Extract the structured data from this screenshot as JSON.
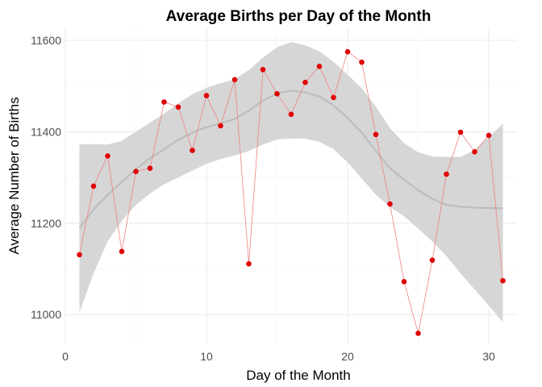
{
  "chart_data": {
    "type": "scatter",
    "title": "Average Births per Day of the Month",
    "xlabel": "Day of the Month",
    "ylabel": "Average Number of Births",
    "xlim": [
      0,
      32
    ],
    "ylim": [
      10935,
      11630
    ],
    "x_ticks": [
      0,
      10,
      20,
      30
    ],
    "y_ticks": [
      11000,
      11200,
      11400,
      11600
    ],
    "grid": true,
    "legend": "none",
    "colors": {
      "points": "#e00000",
      "point_line": "#f08080",
      "smooth_line": "#bdbdbd",
      "ribbon": "#d6d6d6"
    },
    "series": [
      {
        "points": [
          {
            "x": 1,
            "y": 11131
          },
          {
            "x": 2,
            "y": 11281
          },
          {
            "x": 3,
            "y": 11347
          },
          {
            "x": 4,
            "y": 11138
          },
          {
            "x": 5,
            "y": 11313
          },
          {
            "x": 6,
            "y": 11320
          },
          {
            "x": 7,
            "y": 11465
          },
          {
            "x": 8,
            "y": 11454
          },
          {
            "x": 9,
            "y": 11359
          },
          {
            "x": 10,
            "y": 11479
          },
          {
            "x": 11,
            "y": 11413
          },
          {
            "x": 12,
            "y": 11514
          },
          {
            "x": 13,
            "y": 11111
          },
          {
            "x": 14,
            "y": 11536
          },
          {
            "x": 15,
            "y": 11483
          },
          {
            "x": 16,
            "y": 11438
          },
          {
            "x": 17,
            "y": 11508
          },
          {
            "x": 18,
            "y": 11543
          },
          {
            "x": 19,
            "y": 11475
          },
          {
            "x": 20,
            "y": 11575
          },
          {
            "x": 21,
            "y": 11552
          },
          {
            "x": 22,
            "y": 11394
          },
          {
            "x": 23,
            "y": 11242
          },
          {
            "x": 24,
            "y": 11072
          },
          {
            "x": 25,
            "y": 10959
          },
          {
            "x": 26,
            "y": 11119
          },
          {
            "x": 27,
            "y": 11307
          },
          {
            "x": 28,
            "y": 11399
          },
          {
            "x": 29,
            "y": 11356
          },
          {
            "x": 30,
            "y": 11392
          },
          {
            "x": 31,
            "y": 11074
          }
        ]
      }
    ],
    "smooth": [
      {
        "x": 1,
        "y": 11190,
        "lo": 11005,
        "hi": 11372
      },
      {
        "x": 2,
        "y": 11230,
        "lo": 11090,
        "hi": 11373
      },
      {
        "x": 3,
        "y": 11262,
        "lo": 11160,
        "hi": 11372
      },
      {
        "x": 4,
        "y": 11290,
        "lo": 11205,
        "hi": 11380
      },
      {
        "x": 5,
        "y": 11318,
        "lo": 11240,
        "hi": 11400
      },
      {
        "x": 6,
        "y": 11342,
        "lo": 11265,
        "hi": 11420
      },
      {
        "x": 7,
        "y": 11362,
        "lo": 11285,
        "hi": 11440
      },
      {
        "x": 8,
        "y": 11382,
        "lo": 11300,
        "hi": 11462
      },
      {
        "x": 9,
        "y": 11398,
        "lo": 11315,
        "hi": 11482
      },
      {
        "x": 10,
        "y": 11410,
        "lo": 11330,
        "hi": 11496
      },
      {
        "x": 11,
        "y": 11418,
        "lo": 11340,
        "hi": 11506
      },
      {
        "x": 12,
        "y": 11428,
        "lo": 11348,
        "hi": 11515
      },
      {
        "x": 13,
        "y": 11446,
        "lo": 11358,
        "hi": 11535
      },
      {
        "x": 14,
        "y": 11468,
        "lo": 11372,
        "hi": 11562
      },
      {
        "x": 15,
        "y": 11484,
        "lo": 11383,
        "hi": 11585
      },
      {
        "x": 16,
        "y": 11490,
        "lo": 11385,
        "hi": 11596
      },
      {
        "x": 17,
        "y": 11486,
        "lo": 11385,
        "hi": 11589
      },
      {
        "x": 18,
        "y": 11477,
        "lo": 11378,
        "hi": 11576
      },
      {
        "x": 19,
        "y": 11458,
        "lo": 11362,
        "hi": 11553
      },
      {
        "x": 20,
        "y": 11430,
        "lo": 11333,
        "hi": 11525
      },
      {
        "x": 21,
        "y": 11398,
        "lo": 11298,
        "hi": 11495
      },
      {
        "x": 22,
        "y": 11358,
        "lo": 11262,
        "hi": 11455
      },
      {
        "x": 23,
        "y": 11320,
        "lo": 11235,
        "hi": 11408
      },
      {
        "x": 24,
        "y": 11295,
        "lo": 11215,
        "hi": 11375
      },
      {
        "x": 25,
        "y": 11272,
        "lo": 11188,
        "hi": 11355
      },
      {
        "x": 26,
        "y": 11253,
        "lo": 11160,
        "hi": 11346
      },
      {
        "x": 27,
        "y": 11240,
        "lo": 11128,
        "hi": 11345
      },
      {
        "x": 28,
        "y": 11236,
        "lo": 11090,
        "hi": 11345
      },
      {
        "x": 29,
        "y": 11234,
        "lo": 11055,
        "hi": 11360
      },
      {
        "x": 30,
        "y": 11233,
        "lo": 11020,
        "hi": 11388
      },
      {
        "x": 31,
        "y": 11233,
        "lo": 10983,
        "hi": 11418
      }
    ]
  }
}
